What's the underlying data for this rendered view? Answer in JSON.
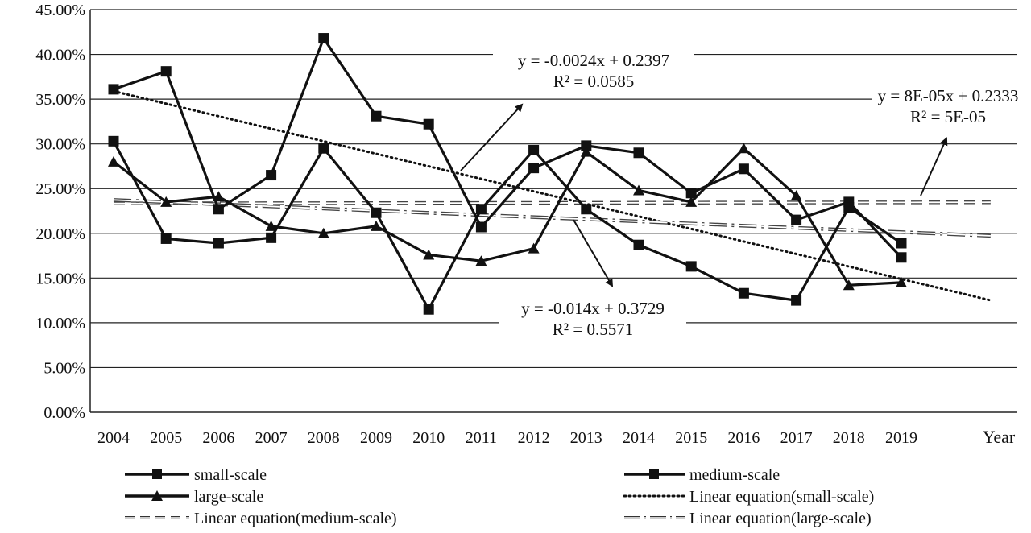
{
  "chart_data": {
    "type": "line",
    "xlabel": "Year",
    "ylabel": "",
    "categories": [
      "2004",
      "2005",
      "2006",
      "2007",
      "2008",
      "2009",
      "2010",
      "2011",
      "2012",
      "2013",
      "2014",
      "2015",
      "2016",
      "2017",
      "2018",
      "2019"
    ],
    "ylim": [
      0,
      0.45
    ],
    "y_ticks": [
      "0.00%",
      "5.00%",
      "10.00%",
      "15.00%",
      "20.00%",
      "25.00%",
      "30.00%",
      "35.00%",
      "40.00%",
      "45.00%"
    ],
    "grid": "horizontal",
    "legend_position": "bottom",
    "series": [
      {
        "name": "small-scale",
        "marker": "square",
        "values": [
          0.361,
          0.381,
          0.227,
          0.265,
          0.418,
          0.331,
          0.322,
          0.207,
          0.273,
          0.298,
          0.29,
          0.245,
          0.272,
          0.215,
          0.235,
          0.173
        ]
      },
      {
        "name": "medium-scale",
        "marker": "square",
        "values": [
          0.303,
          0.194,
          0.189,
          0.195,
          0.295,
          0.223,
          0.115,
          0.227,
          0.293,
          0.227,
          0.187,
          0.163,
          0.133,
          0.125,
          0.229,
          0.189
        ]
      },
      {
        "name": "large-scale",
        "marker": "triangle",
        "values": [
          0.28,
          0.235,
          0.241,
          0.208,
          0.2,
          0.208,
          0.176,
          0.169,
          0.183,
          0.291,
          0.248,
          0.235,
          0.295,
          0.242,
          0.142,
          0.145
        ]
      }
    ],
    "trendlines": [
      {
        "name": "Linear equation(small-scale)",
        "style": "dotted",
        "slope": -0.014,
        "intercept": 0.3729,
        "x_end": 17.7
      },
      {
        "name": "Linear equation(medium-scale)",
        "style": "dashed",
        "slope": 8e-05,
        "intercept": 0.2333,
        "x_end": 17.7
      },
      {
        "name": "Linear equation(large-scale)",
        "style": "long-dash-dot",
        "slope": -0.0024,
        "intercept": 0.2397,
        "x_end": 17.7
      }
    ],
    "legend": [
      "small-scale",
      "medium-scale",
      "large-scale",
      "Linear equation(small-scale)",
      "Linear equation(medium-scale)",
      "Linear equation(large-scale)"
    ],
    "annotations": [
      {
        "line1": "y = -0.0024x + 0.2397",
        "line2": "R² = 0.0585"
      },
      {
        "line1": "y = 8E-05x + 0.2333",
        "line2": "R² = 5E-05"
      },
      {
        "line1": "y = -0.014x + 0.3729",
        "line2": "R² = 0.5571"
      }
    ]
  }
}
